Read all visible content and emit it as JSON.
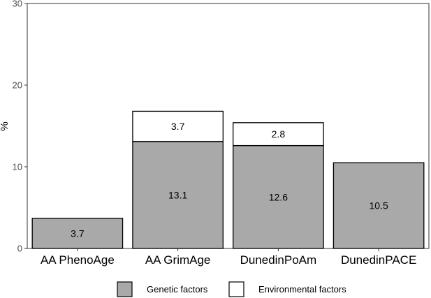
{
  "chart_data": {
    "type": "bar",
    "stacked": true,
    "categories": [
      "AA PhenoAge",
      "AA GrimAge",
      "DunedinPoAm",
      "DunedinPACE"
    ],
    "series": [
      {
        "name": "Genetic factors",
        "values": [
          3.7,
          13.1,
          12.6,
          10.5
        ],
        "color": "#a9a9a9"
      },
      {
        "name": "Environmental factors",
        "values": [
          0,
          3.7,
          2.8,
          0
        ],
        "color": "#ffffff"
      }
    ],
    "ylabel": "%",
    "xlabel": "",
    "ylim": [
      0,
      30
    ],
    "yticks": [
      0,
      10,
      20,
      30
    ],
    "grid": false,
    "legend_position": "bottom",
    "bar_labels": [
      {
        "category": "AA PhenoAge",
        "series": "Genetic factors",
        "text": "3.7"
      },
      {
        "category": "AA GrimAge",
        "series": "Genetic factors",
        "text": "13.1"
      },
      {
        "category": "AA GrimAge",
        "series": "Environmental factors",
        "text": "3.7"
      },
      {
        "category": "DunedinPoAm",
        "series": "Genetic factors",
        "text": "12.6"
      },
      {
        "category": "DunedinPoAm",
        "series": "Environmental factors",
        "text": "2.8"
      },
      {
        "category": "DunedinPACE",
        "series": "Genetic factors",
        "text": "10.5"
      }
    ]
  }
}
